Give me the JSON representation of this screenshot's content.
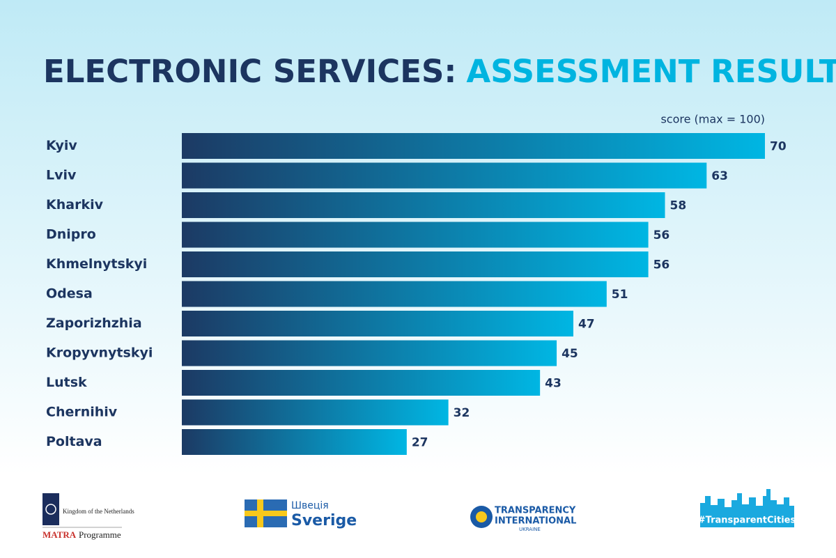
{
  "chart_data": {
    "type": "bar",
    "orientation": "horizontal",
    "title_part1": "ELECTRONIC SERVICES:",
    "title_part2": "ASSESSMENT RESULTS",
    "subtitle": "score (max = 100)",
    "categories": [
      "Kyiv",
      "Lviv",
      "Kharkiv",
      "Dnipro",
      "Khmelnytskyi",
      "Odesa",
      "Zaporizhzhia",
      "Kropyvnytskyi",
      "Lutsk",
      "Chernihiv",
      "Poltava"
    ],
    "values": [
      70,
      63,
      58,
      56,
      56,
      51,
      47,
      45,
      43,
      32,
      27
    ],
    "colors": [
      "#1c3a64",
      "#00b6e3"
    ]
  },
  "logos": {
    "netherlands": "Kingdom of the Netherlands",
    "matra": "MATRA",
    "programme": "Programme",
    "sweden_native": "Швеція",
    "sweden": "Sverige",
    "ti_line1": "TRANSPARENCY",
    "ti_line2": "INTERNATIONAL",
    "ti_line3": "UKRAINE",
    "hashtag": "#TransparentCities"
  }
}
